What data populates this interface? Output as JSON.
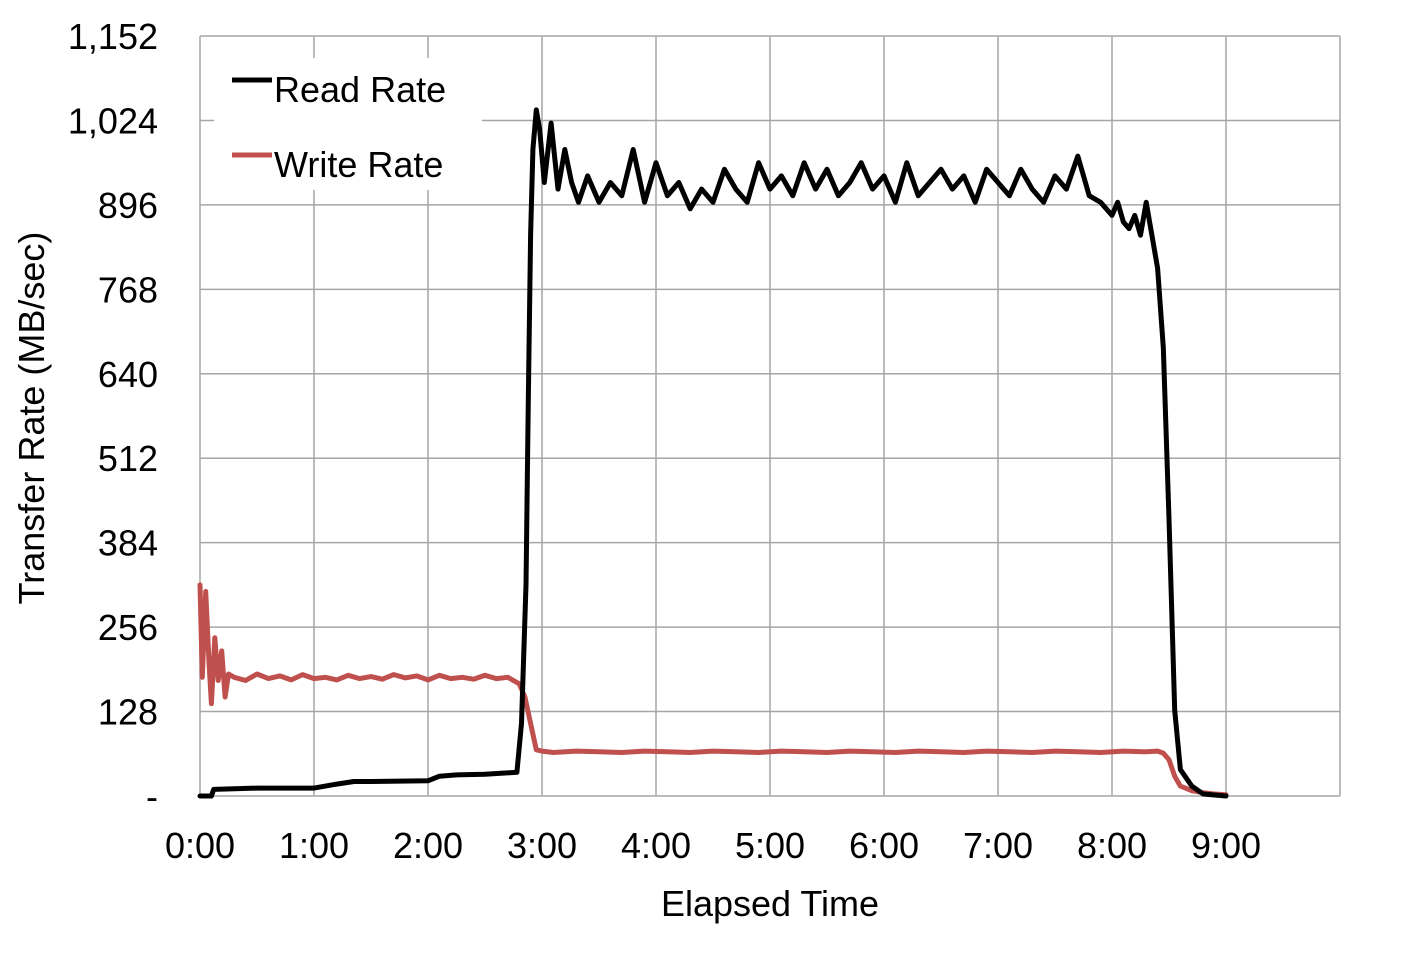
{
  "chart_data": {
    "type": "line",
    "title": "",
    "xlabel": "Elapsed Time",
    "ylabel": "Transfer Rate (MB/sec)",
    "x_unit": "minutes",
    "xlim": [
      0,
      10
    ],
    "ylim": [
      0,
      1152
    ],
    "x_ticks": [
      "0:00",
      "1:00",
      "2:00",
      "3:00",
      "4:00",
      "5:00",
      "6:00",
      "7:00",
      "8:00",
      "9:00"
    ],
    "y_ticks": [
      "-",
      "128",
      "256",
      "384",
      "512",
      "640",
      "768",
      "896",
      "1,024",
      "1,152"
    ],
    "grid": true,
    "legend_position": "top-left",
    "colors": {
      "read": "#000000",
      "write": "#c0504d",
      "grid": "#a6a6a6"
    },
    "series": [
      {
        "name": "Read Rate",
        "x": [
          0,
          0.1,
          0.12,
          0.5,
          1.0,
          1.2,
          1.35,
          1.5,
          2.0,
          2.1,
          2.25,
          2.5,
          2.78,
          2.82,
          2.86,
          2.88,
          2.9,
          2.92,
          2.95,
          2.98,
          3.02,
          3.08,
          3.14,
          3.2,
          3.26,
          3.32,
          3.4,
          3.5,
          3.6,
          3.7,
          3.8,
          3.9,
          4.0,
          4.1,
          4.2,
          4.3,
          4.4,
          4.5,
          4.6,
          4.7,
          4.8,
          4.9,
          5.0,
          5.1,
          5.2,
          5.3,
          5.4,
          5.5,
          5.6,
          5.7,
          5.8,
          5.9,
          6.0,
          6.1,
          6.2,
          6.3,
          6.4,
          6.5,
          6.6,
          6.7,
          6.8,
          6.9,
          7.0,
          7.1,
          7.2,
          7.3,
          7.4,
          7.5,
          7.6,
          7.7,
          7.8,
          7.9,
          8.0,
          8.05,
          8.1,
          8.15,
          8.2,
          8.25,
          8.3,
          8.35,
          8.4,
          8.45,
          8.5,
          8.55,
          8.6,
          8.7,
          8.8,
          9.0
        ],
        "values": [
          0,
          0,
          10,
          12,
          12,
          18,
          22,
          22,
          23,
          30,
          32,
          33,
          36,
          110,
          320,
          600,
          850,
          980,
          1040,
          1010,
          930,
          1020,
          920,
          980,
          930,
          900,
          940,
          900,
          930,
          910,
          980,
          900,
          960,
          910,
          930,
          890,
          920,
          900,
          950,
          920,
          900,
          960,
          920,
          940,
          910,
          960,
          920,
          950,
          910,
          930,
          960,
          920,
          940,
          900,
          960,
          910,
          930,
          950,
          920,
          940,
          900,
          950,
          930,
          910,
          950,
          920,
          900,
          940,
          920,
          970,
          910,
          900,
          880,
          900,
          870,
          860,
          880,
          850,
          900,
          850,
          800,
          680,
          420,
          130,
          40,
          15,
          3,
          0
        ]
      },
      {
        "name": "Write Rate",
        "x": [
          0,
          0.02,
          0.05,
          0.08,
          0.1,
          0.13,
          0.16,
          0.19,
          0.22,
          0.25,
          0.3,
          0.4,
          0.5,
          0.6,
          0.7,
          0.8,
          0.9,
          1.0,
          1.1,
          1.2,
          1.3,
          1.4,
          1.5,
          1.6,
          1.7,
          1.8,
          1.9,
          2.0,
          2.1,
          2.2,
          2.3,
          2.4,
          2.5,
          2.6,
          2.7,
          2.8,
          2.85,
          2.9,
          2.95,
          3.0,
          3.1,
          3.3,
          3.5,
          3.7,
          3.9,
          4.1,
          4.3,
          4.5,
          4.7,
          4.9,
          5.1,
          5.3,
          5.5,
          5.7,
          5.9,
          6.1,
          6.3,
          6.5,
          6.7,
          6.9,
          7.1,
          7.3,
          7.5,
          7.7,
          7.9,
          8.1,
          8.3,
          8.4,
          8.45,
          8.5,
          8.55,
          8.6,
          8.7,
          8.8,
          8.9,
          9.0
        ],
        "values": [
          320,
          180,
          310,
          200,
          140,
          240,
          175,
          220,
          150,
          185,
          180,
          175,
          185,
          178,
          182,
          176,
          184,
          178,
          180,
          176,
          183,
          178,
          181,
          177,
          184,
          179,
          182,
          176,
          183,
          178,
          180,
          177,
          183,
          178,
          180,
          170,
          150,
          110,
          70,
          68,
          66,
          68,
          67,
          66,
          68,
          67,
          66,
          68,
          67,
          66,
          68,
          67,
          66,
          68,
          67,
          66,
          68,
          67,
          66,
          68,
          67,
          66,
          68,
          67,
          66,
          68,
          67,
          68,
          65,
          55,
          30,
          15,
          8,
          5,
          3,
          2
        ]
      }
    ]
  }
}
